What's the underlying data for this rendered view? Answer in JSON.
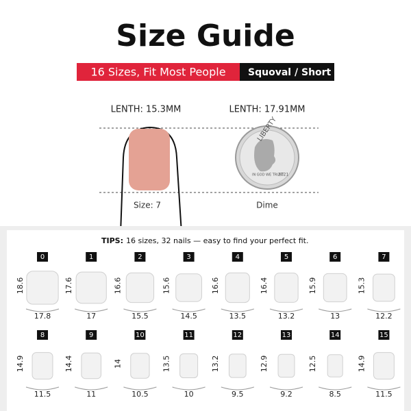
{
  "header": {
    "title": "Size Guide",
    "badge": "16 Sizes, Fit Most People",
    "shape": "Squoval",
    "length": "/ Short"
  },
  "comparison": {
    "finger_length": "LENTH: 15.3MM",
    "coin_length": "LENTH: 17.91MM",
    "finger_caption": "Size: 7",
    "coin_caption": "Dime",
    "coin_texts": [
      "LIBERTY",
      "IN GOD WE TRUST",
      "2021"
    ]
  },
  "tips": {
    "label": "TIPS:",
    "text": "16 sizes, 32 nails — easy to find your perfect fit."
  },
  "nails": [
    {
      "size": "0",
      "length": 18.6,
      "width": 17.8
    },
    {
      "size": "1",
      "length": 17.6,
      "width": 17
    },
    {
      "size": "2",
      "length": 16.6,
      "width": 15.5
    },
    {
      "size": "3",
      "length": 15.6,
      "width": 14.5
    },
    {
      "size": "4",
      "length": 16.6,
      "width": 13.5
    },
    {
      "size": "5",
      "length": 16.4,
      "width": 13.2
    },
    {
      "size": "6",
      "length": 15.9,
      "width": 13
    },
    {
      "size": "7",
      "length": 15.3,
      "width": 12.2
    },
    {
      "size": "8",
      "length": 14.9,
      "width": 11.5
    },
    {
      "size": "9",
      "length": 14.4,
      "width": 11
    },
    {
      "size": "10",
      "length": 14,
      "width": 10.5
    },
    {
      "size": "11",
      "length": 13.5,
      "width": 10
    },
    {
      "size": "12",
      "length": 13.2,
      "width": 9.5
    },
    {
      "size": "13",
      "length": 12.9,
      "width": 9.2
    },
    {
      "size": "14",
      "length": 12.5,
      "width": 8.5
    },
    {
      "size": "15",
      "length": 14.9,
      "width": 11.5
    }
  ]
}
